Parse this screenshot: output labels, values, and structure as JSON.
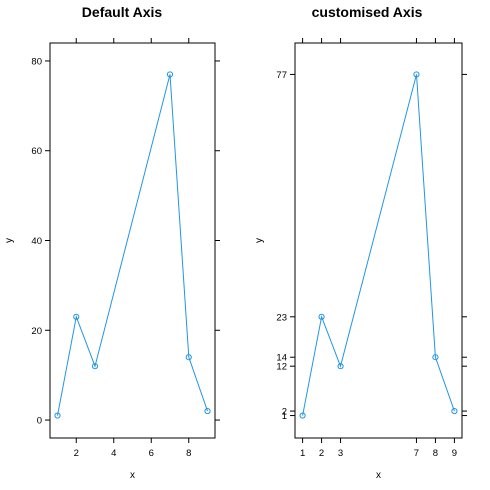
{
  "chart_data": [
    {
      "type": "line",
      "title": "Default Axis",
      "xlabel": "x",
      "ylabel": "y",
      "x": [
        1,
        2,
        3,
        7,
        8,
        9
      ],
      "y": [
        1,
        23,
        12,
        77,
        14,
        2
      ],
      "xlim": [
        0.6,
        9.4
      ],
      "ylim": [
        -4,
        84
      ],
      "xticks": [
        2,
        4,
        6,
        8
      ],
      "yticks": [
        0,
        20,
        40,
        60,
        80
      ],
      "tick_labels_x": [
        "2",
        "4",
        "6",
        "8"
      ],
      "tick_labels_y": [
        "0",
        "20",
        "40",
        "60",
        "80"
      ],
      "color": "#2196e3",
      "marker": "open-circle",
      "grid": false
    },
    {
      "type": "line",
      "title": "customised Axis",
      "xlabel": "x",
      "ylabel": "y",
      "x": [
        1,
        2,
        3,
        7,
        8,
        9
      ],
      "y": [
        1,
        23,
        12,
        77,
        14,
        2
      ],
      "xlim": [
        0.6,
        9.4
      ],
      "ylim": [
        -4,
        84
      ],
      "xticks": [
        1,
        2,
        3,
        7,
        8,
        9
      ],
      "yticks": [
        1,
        2,
        12,
        14,
        23,
        77
      ],
      "tick_labels_x": [
        "1",
        "2",
        "3",
        "7",
        "8",
        "9"
      ],
      "tick_labels_y": [
        "1",
        "2",
        "12",
        "14",
        "23",
        "77"
      ],
      "color": "#2196e3",
      "marker": "open-circle",
      "grid": false
    }
  ]
}
